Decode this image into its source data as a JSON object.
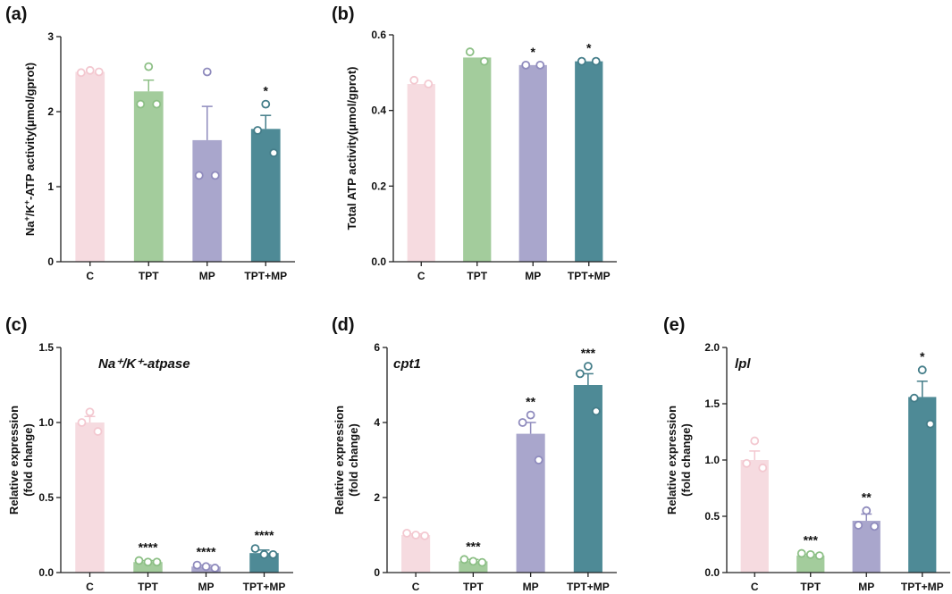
{
  "colors": {
    "C": "#f6dbe0",
    "TPT": "#a3cc9c",
    "MP": "#a9a6cc",
    "TPT+MP": "#4e8a96",
    "C_dot": "#f3c8d0",
    "TPT_dot": "#8cbf85",
    "MP_dot": "#8f8bbd",
    "TPT+MP_dot": "#447d89"
  },
  "chart_data": [
    {
      "id": "a",
      "panel_label": "(a)",
      "type": "bar",
      "ylabel_parts": [
        "Na",
        "+",
        "/K",
        "+",
        "-ATP activity(μmol/gprot)"
      ],
      "gene": "",
      "categories": [
        "C",
        "TPT",
        "MP",
        "TPT+MP"
      ],
      "values": [
        2.53,
        2.27,
        1.62,
        1.77
      ],
      "errors": [
        0.0,
        0.15,
        0.45,
        0.18
      ],
      "points": [
        [
          2.52,
          2.55,
          2.53
        ],
        [
          2.6,
          2.1,
          2.1
        ],
        [
          2.53,
          1.15,
          1.15
        ],
        [
          2.1,
          1.75,
          1.45
        ]
      ],
      "stars": [
        "",
        "",
        "",
        "*"
      ],
      "ylim": [
        0,
        3
      ],
      "yticks": [
        0,
        1,
        2,
        3
      ],
      "yticklabels": [
        "0",
        "1",
        "2",
        "3"
      ]
    },
    {
      "id": "b",
      "panel_label": "(b)",
      "type": "bar",
      "ylabel_parts": [
        "Total ATP activity(μmol/gprot)"
      ],
      "gene": "",
      "categories": [
        "C",
        "TPT",
        "MP",
        "TPT+MP"
      ],
      "values": [
        0.47,
        0.54,
        0.52,
        0.53
      ],
      "errors": [
        0.0,
        0.0,
        0.0,
        0.0
      ],
      "points": [
        [
          0.48,
          0.47
        ],
        [
          0.555,
          0.53
        ],
        [
          0.52,
          0.52
        ],
        [
          0.53,
          0.53
        ]
      ],
      "stars": [
        "",
        "",
        "*",
        "*"
      ],
      "ylim": [
        0,
        0.6
      ],
      "yticks": [
        0,
        0.2,
        0.4,
        0.6
      ],
      "yticklabels": [
        "0.0",
        "0.2",
        "0.4",
        "0.6"
      ]
    },
    {
      "id": "c",
      "panel_label": "(c)",
      "type": "bar",
      "ylabel_parts": [
        "Relative expression",
        "(fold change)"
      ],
      "gene": "Na⁺/K⁺-atpase",
      "categories": [
        "C",
        "TPT",
        "MP",
        "TPT+MP"
      ],
      "values": [
        1.0,
        0.07,
        0.04,
        0.13
      ],
      "errors": [
        0.04,
        0.01,
        0.01,
        0.02
      ],
      "points": [
        [
          1.07,
          1.0,
          0.94
        ],
        [
          0.08,
          0.07,
          0.07
        ],
        [
          0.05,
          0.04,
          0.03
        ],
        [
          0.16,
          0.12,
          0.12
        ]
      ],
      "stars": [
        "",
        "****",
        "****",
        "****"
      ],
      "ylim": [
        0,
        1.5
      ],
      "yticks": [
        0,
        0.5,
        1.0,
        1.5
      ],
      "yticklabels": [
        "0.0",
        "0.5",
        "1.0",
        "1.5"
      ]
    },
    {
      "id": "d",
      "panel_label": "(d)",
      "type": "bar",
      "ylabel_parts": [
        "Relative expression",
        "(fold change)"
      ],
      "gene": "cpt1",
      "categories": [
        "C",
        "TPT",
        "MP",
        "TPT+MP"
      ],
      "values": [
        1.0,
        0.3,
        3.7,
        5.0
      ],
      "errors": [
        0.03,
        0.05,
        0.3,
        0.3
      ],
      "points": [
        [
          1.05,
          1.0,
          0.98
        ],
        [
          0.35,
          0.3,
          0.27
        ],
        [
          4.2,
          4.0,
          3.0
        ],
        [
          5.5,
          5.3,
          4.3
        ]
      ],
      "stars": [
        "",
        "***",
        "**",
        "***"
      ],
      "ylim": [
        0,
        6
      ],
      "yticks": [
        0,
        2,
        4,
        6
      ],
      "yticklabels": [
        "0",
        "2",
        "4",
        "6"
      ]
    },
    {
      "id": "e",
      "panel_label": "(e)",
      "type": "bar",
      "ylabel_parts": [
        "Relative expression",
        "(fold change)"
      ],
      "gene": "lpl",
      "categories": [
        "C",
        "TPT",
        "MP",
        "TPT+MP"
      ],
      "values": [
        1.0,
        0.15,
        0.46,
        1.56
      ],
      "errors": [
        0.08,
        0.01,
        0.06,
        0.14
      ],
      "points": [
        [
          1.17,
          0.97,
          0.93
        ],
        [
          0.17,
          0.16,
          0.15
        ],
        [
          0.55,
          0.42,
          0.41
        ],
        [
          1.8,
          1.55,
          1.32
        ]
      ],
      "stars": [
        "",
        "***",
        "**",
        "*"
      ],
      "ylim": [
        0,
        2.0
      ],
      "yticks": [
        0,
        0.5,
        1.0,
        1.5,
        2.0
      ],
      "yticklabels": [
        "0.0",
        "0.5",
        "1.0",
        "1.5",
        "2.0"
      ]
    }
  ]
}
